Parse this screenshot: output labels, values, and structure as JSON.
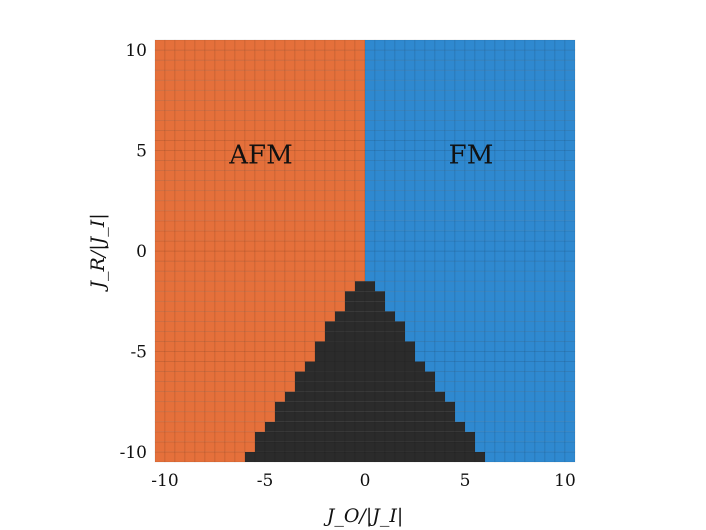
{
  "chart_data": {
    "type": "heatmap",
    "title": "",
    "xlabel": "J_O/|J_I|",
    "ylabel": "J_R/|J_I|",
    "xlim": [
      -10.5,
      10.5
    ],
    "ylim": [
      -10.5,
      10.5
    ],
    "xticks": [
      -10,
      -5,
      0,
      5,
      10
    ],
    "yticks": [
      -10,
      -5,
      0,
      5,
      10
    ],
    "x_tick_labels": [
      "-10",
      "-5",
      "0",
      "5",
      "10"
    ],
    "y_tick_labels": [
      "-10",
      "-5",
      "0",
      "5",
      "10"
    ],
    "grid_resolution": 0.5,
    "phases": [
      {
        "name": "AFM",
        "color": "#E5703B",
        "region": "J_O < 0 above the paramagnetic wedge"
      },
      {
        "name": "FM",
        "color": "#2F89D0",
        "region": "J_O > 0 above the paramagnetic wedge"
      },
      {
        "name": "",
        "color": "#2B2B2B",
        "region": "wedge with apex near (0, -1), J_R < -1 - 1.55·|J_O|"
      }
    ],
    "region_labels": [
      {
        "text": "AFM",
        "x": -5.2,
        "y": 4.8
      },
      {
        "text": "FM",
        "x": 5.3,
        "y": 4.8
      }
    ]
  }
}
